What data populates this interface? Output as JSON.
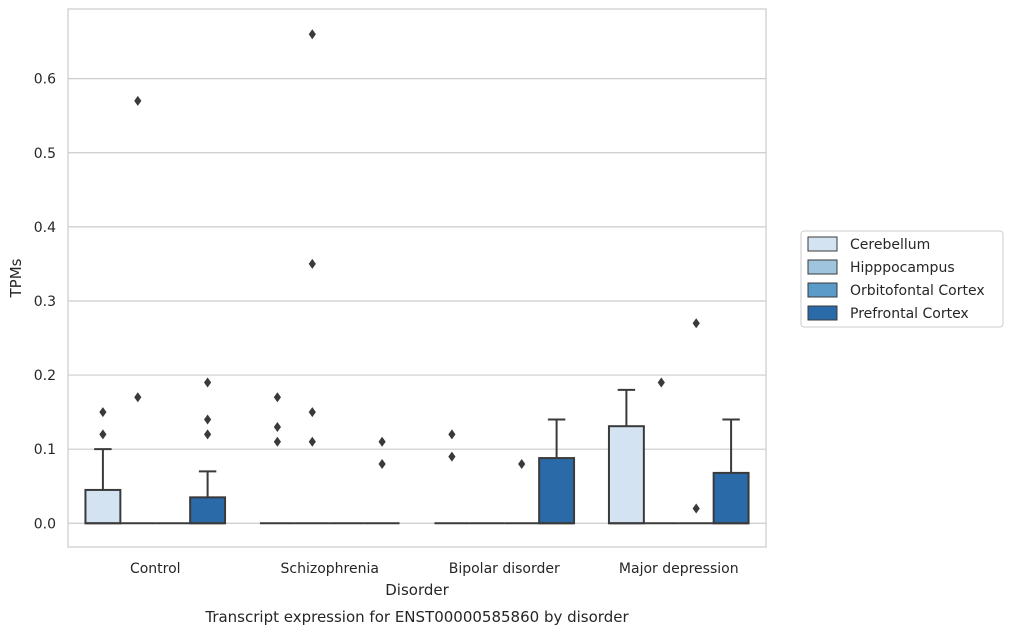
{
  "chart_data": {
    "type": "box",
    "title": "Transcript expression for ENST00000585860 by disorder",
    "xlabel": "Disorder",
    "ylabel": "TPMs",
    "ylim": [
      -0.032,
      0.694
    ],
    "yticks": [
      "0.0",
      "0.1",
      "0.2",
      "0.3",
      "0.4",
      "0.5",
      "0.6"
    ],
    "grid": true,
    "legend_position": "right",
    "categories": [
      "Control",
      "Schizophrenia",
      "Bipolar disorder",
      "Major depression"
    ],
    "series": [
      {
        "name": "Cerebellum",
        "color": "#d4e3f1",
        "boxes": [
          {
            "q1": 0,
            "median": 0,
            "q3": 0.045,
            "whisker_low": 0,
            "whisker_high": 0.1,
            "outliers": [
              0.12,
              0.15
            ]
          },
          {
            "q1": 0,
            "median": 0,
            "q3": 0,
            "whisker_low": 0,
            "whisker_high": 0,
            "outliers": [
              0.11,
              0.13,
              0.17
            ]
          },
          {
            "q1": 0,
            "median": 0,
            "q3": 0,
            "whisker_low": 0,
            "whisker_high": 0,
            "outliers": [
              0.09,
              0.12
            ]
          },
          {
            "q1": 0,
            "median": 0,
            "q3": 0.131,
            "whisker_low": 0,
            "whisker_high": 0.18,
            "outliers": []
          }
        ]
      },
      {
        "name": "Hipppocampus",
        "color": "#9ec4de",
        "boxes": [
          {
            "q1": 0,
            "median": 0,
            "q3": 0,
            "whisker_low": 0,
            "whisker_high": 0,
            "outliers": [
              0.17,
              0.57
            ]
          },
          {
            "q1": 0,
            "median": 0,
            "q3": 0,
            "whisker_low": 0,
            "whisker_high": 0,
            "outliers": [
              0.11,
              0.15,
              0.35,
              0.66
            ]
          },
          {
            "q1": 0,
            "median": 0,
            "q3": 0,
            "whisker_low": 0,
            "whisker_high": 0,
            "outliers": []
          },
          {
            "q1": 0,
            "median": 0,
            "q3": 0,
            "whisker_low": 0,
            "whisker_high": 0,
            "outliers": [
              0.19
            ]
          }
        ]
      },
      {
        "name": "Orbitofontal Cortex",
        "color": "#5a9bc9",
        "boxes": [
          {
            "q1": 0,
            "median": 0,
            "q3": 0,
            "whisker_low": 0,
            "whisker_high": 0,
            "outliers": []
          },
          {
            "q1": 0,
            "median": 0,
            "q3": 0,
            "whisker_low": 0,
            "whisker_high": 0,
            "outliers": []
          },
          {
            "q1": 0,
            "median": 0,
            "q3": 0,
            "whisker_low": 0,
            "whisker_high": 0,
            "outliers": [
              0.08
            ]
          },
          {
            "q1": 0,
            "median": 0,
            "q3": 0,
            "whisker_low": 0,
            "whisker_high": 0,
            "outliers": [
              0.02,
              0.27
            ]
          }
        ]
      },
      {
        "name": "Prefrontal Cortex",
        "color": "#2a6aa8",
        "boxes": [
          {
            "q1": 0,
            "median": 0,
            "q3": 0.035,
            "whisker_low": 0,
            "whisker_high": 0.07,
            "outliers": [
              0.12,
              0.14,
              0.19
            ]
          },
          {
            "q1": 0,
            "median": 0,
            "q3": 0,
            "whisker_low": 0,
            "whisker_high": 0,
            "outliers": [
              0.08,
              0.11
            ]
          },
          {
            "q1": 0,
            "median": 0,
            "q3": 0.088,
            "whisker_low": 0,
            "whisker_high": 0.14,
            "outliers": []
          },
          {
            "q1": 0,
            "median": 0,
            "q3": 0.068,
            "whisker_low": 0,
            "whisker_high": 0.14,
            "outliers": []
          }
        ]
      }
    ]
  }
}
